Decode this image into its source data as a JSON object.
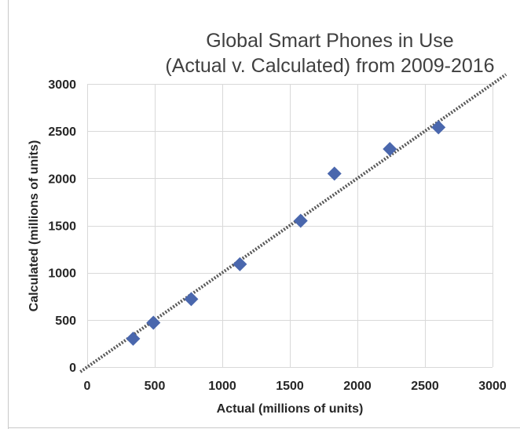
{
  "chart_data": {
    "type": "scatter",
    "title_lines": [
      "Global Smart Phones in  Use",
      "(Actual v. Calculated) from 2009-2016"
    ],
    "xlabel": "Actual (millions of units)",
    "ylabel": "Calculated (millions of units)",
    "xlim": [
      0,
      3000
    ],
    "ylim": [
      0,
      3000
    ],
    "xticks": [
      "0",
      "500",
      "1000",
      "1500",
      "2000",
      "2500",
      "3000"
    ],
    "yticks": [
      "0",
      "500",
      "1000",
      "1500",
      "2000",
      "2500",
      "3000"
    ],
    "grid": true,
    "legend": "none",
    "marker": "diamond",
    "marker_color": "#4a67ad",
    "trendline": {
      "type": "linear",
      "style": "dotted",
      "color": "#595959",
      "x": [
        -50,
        3100
      ],
      "y": [
        -50,
        3100
      ]
    },
    "points": [
      {
        "x": 340,
        "y": 300
      },
      {
        "x": 490,
        "y": 470
      },
      {
        "x": 770,
        "y": 720
      },
      {
        "x": 1130,
        "y": 1090
      },
      {
        "x": 1580,
        "y": 1550
      },
      {
        "x": 1830,
        "y": 2050
      },
      {
        "x": 2240,
        "y": 2310
      },
      {
        "x": 2600,
        "y": 2540
      }
    ]
  }
}
